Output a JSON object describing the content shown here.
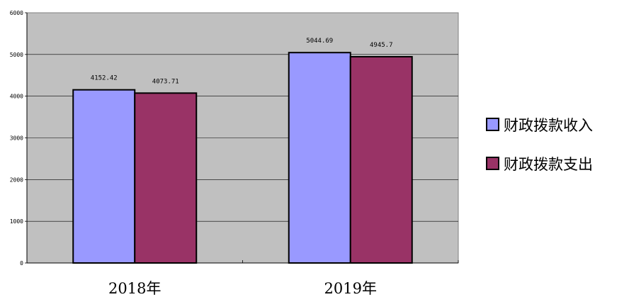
{
  "chart_data": {
    "type": "bar",
    "categories": [
      "2018年",
      "2019年"
    ],
    "series": [
      {
        "name": "财政拨款收入",
        "values": [
          4152.42,
          5044.69
        ],
        "labels": [
          "4152.42",
          "5044.69"
        ],
        "color": "#9999FF"
      },
      {
        "name": "财政拨款支出",
        "values": [
          4073.71,
          4945.7
        ],
        "labels": [
          "4073.71",
          "4945.7"
        ],
        "color": "#993366"
      }
    ],
    "title": "",
    "xlabel": "",
    "ylabel": "",
    "ylim": [
      0,
      6000
    ],
    "yticks": [
      0,
      1000,
      2000,
      3000,
      4000,
      5000,
      6000
    ],
    "ytick_labels": [
      "0",
      "1000",
      "2000",
      "3000",
      "4000",
      "5000",
      "6000"
    ],
    "grid": true,
    "legend_position": "right",
    "plot_background": "#C0C0C0"
  }
}
